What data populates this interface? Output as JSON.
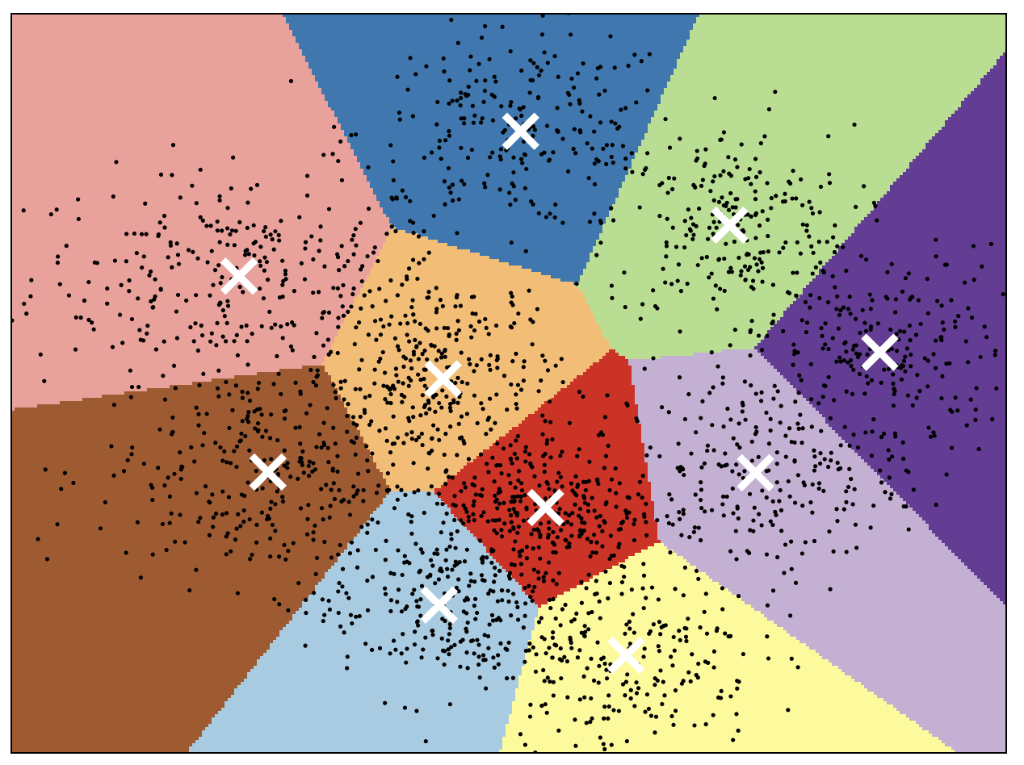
{
  "chart_data": {
    "type": "scatter",
    "title": "",
    "xlabel": "",
    "ylabel": "",
    "xlim": [
      0,
      1
    ],
    "ylim": [
      0,
      1
    ],
    "axes_ticks": false,
    "grid": false,
    "legend": "none",
    "marker_color": "#000000",
    "centroid_marker": "x",
    "centroid_color": "#ffffff",
    "clusters": [
      {
        "region_color": "#e9a19b",
        "centroid": [
          0.229,
          0.645
        ],
        "spread": [
          0.105,
          0.071
        ],
        "n": 300
      },
      {
        "region_color": "#3f77ae",
        "centroid": [
          0.512,
          0.841
        ],
        "spread": [
          0.081,
          0.067
        ],
        "n": 240
      },
      {
        "region_color": "#b8dd93",
        "centroid": [
          0.722,
          0.714
        ],
        "spread": [
          0.062,
          0.067
        ],
        "n": 230
      },
      {
        "region_color": "#633c93",
        "centroid": [
          0.873,
          0.542
        ],
        "spread": [
          0.067,
          0.071
        ],
        "n": 230
      },
      {
        "region_color": "#f2bd77",
        "centroid": [
          0.434,
          0.506
        ],
        "spread": [
          0.06,
          0.071
        ],
        "n": 280
      },
      {
        "region_color": "#9e5b32",
        "centroid": [
          0.258,
          0.38
        ],
        "spread": [
          0.087,
          0.077
        ],
        "n": 320
      },
      {
        "region_color": "#cb3327",
        "centroid": [
          0.537,
          0.332
        ],
        "spread": [
          0.057,
          0.054
        ],
        "n": 300
      },
      {
        "region_color": "#c3b0d2",
        "centroid": [
          0.748,
          0.379
        ],
        "spread": [
          0.073,
          0.071
        ],
        "n": 240
      },
      {
        "region_color": "#a8cbe1",
        "centroid": [
          0.43,
          0.2
        ],
        "spread": [
          0.067,
          0.062
        ],
        "n": 250
      },
      {
        "region_color": "#fdf99d",
        "centroid": [
          0.618,
          0.132
        ],
        "spread": [
          0.067,
          0.062
        ],
        "n": 220
      }
    ]
  }
}
